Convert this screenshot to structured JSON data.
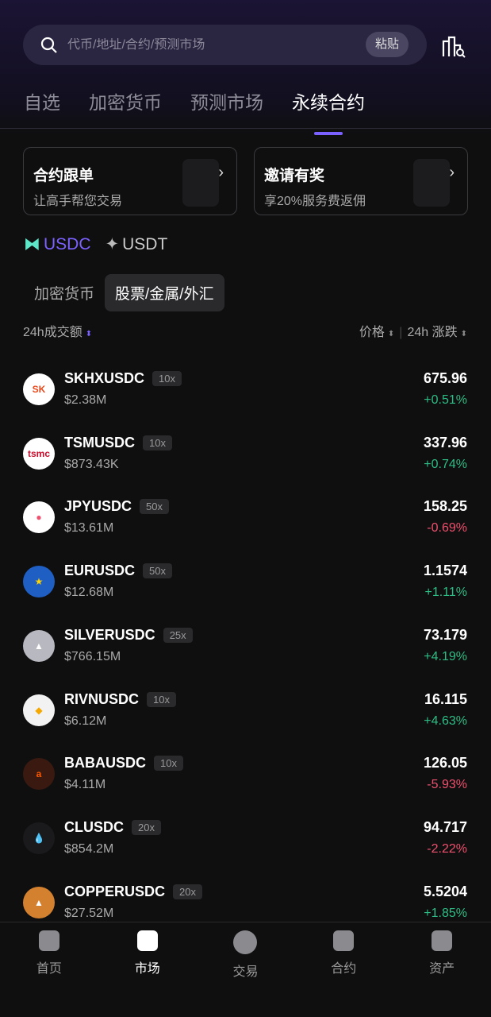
{
  "search": {
    "placeholder": "代币/地址/合约/预测市场",
    "paste": "粘贴"
  },
  "tabs": [
    "自选",
    "加密货币",
    "预测市场",
    "永续合约"
  ],
  "cards": [
    {
      "title": "合约跟单",
      "sub": "让高手帮您交易"
    },
    {
      "title": "邀请有奖",
      "sub": "享20%服务费返佣"
    }
  ],
  "quote": {
    "selected": "USDC",
    "other": "USDT",
    "accent": "#7b61ff"
  },
  "segments": [
    "加密货币",
    "股票/金属/外汇"
  ],
  "columns": {
    "volume": "24h成交额",
    "price": "价格",
    "change": "24h 涨跌"
  },
  "colors": {
    "up": "#2ebd85",
    "down": "#f0506e"
  },
  "rows": [
    {
      "symbol": "SKHXUSDC",
      "lev": "10x",
      "vol": "$2.38M",
      "price": "675.96",
      "chg": "+0.51%",
      "up": true,
      "bg": "#ffffff",
      "fg": "#e8491d",
      "mark": "SK"
    },
    {
      "symbol": "TSMUSDC",
      "lev": "10x",
      "vol": "$873.43K",
      "price": "337.96",
      "chg": "+0.74%",
      "up": true,
      "bg": "#ffffff",
      "fg": "#c8102e",
      "mark": "tsmc"
    },
    {
      "symbol": "JPYUSDC",
      "lev": "50x",
      "vol": "$13.61M",
      "price": "158.25",
      "chg": "-0.69%",
      "up": false,
      "bg": "#ffffff",
      "fg": "#f0506e",
      "mark": "●"
    },
    {
      "symbol": "EURUSDC",
      "lev": "50x",
      "vol": "$12.68M",
      "price": "1.1574",
      "chg": "+1.11%",
      "up": true,
      "bg": "#1f5fc4",
      "fg": "#ffd400",
      "mark": "★"
    },
    {
      "symbol": "SILVERUSDC",
      "lev": "25x",
      "vol": "$766.15M",
      "price": "73.179",
      "chg": "+4.19%",
      "up": true,
      "bg": "#b8b8c0",
      "fg": "#ffffff",
      "mark": "▲"
    },
    {
      "symbol": "RIVNUSDC",
      "lev": "10x",
      "vol": "$6.12M",
      "price": "16.115",
      "chg": "+4.63%",
      "up": true,
      "bg": "#f2f2f2",
      "fg": "#f5a800",
      "mark": "◆"
    },
    {
      "symbol": "BABAUSDC",
      "lev": "10x",
      "vol": "$4.11M",
      "price": "126.05",
      "chg": "-5.93%",
      "up": false,
      "bg": "#3a1a10",
      "fg": "#ff5a00",
      "mark": "a"
    },
    {
      "symbol": "CLUSDC",
      "lev": "20x",
      "vol": "$854.2M",
      "price": "94.717",
      "chg": "-2.22%",
      "up": false,
      "bg": "#1a1a1c",
      "fg": "#ffffff",
      "mark": "💧"
    },
    {
      "symbol": "COPPERUSDC",
      "lev": "20x",
      "vol": "$27.52M",
      "price": "5.5204",
      "chg": "+1.85%",
      "up": true,
      "bg": "#d4812f",
      "fg": "#ffffff",
      "mark": "▲"
    }
  ],
  "nav": [
    "首页",
    "市场",
    "交易",
    "合约",
    "资产"
  ]
}
